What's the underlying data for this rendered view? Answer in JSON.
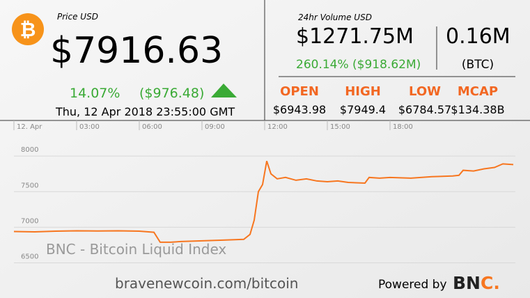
{
  "header": {
    "price_label": "Price USD",
    "price": "$7916.63",
    "change_pct": "14.07%",
    "change_abs": "($976.48)",
    "timestamp": "Thu, 12 Apr 2018 23:55:00 GMT"
  },
  "volume": {
    "label": "24hr Volume USD",
    "usd": "$1271.75M",
    "btc": "0.16M",
    "btc_unit": "(BTC)",
    "change": "260.14% ($918.62M)"
  },
  "stats": [
    {
      "label": "OPEN",
      "value": "$6943.98"
    },
    {
      "label": "HIGH",
      "value": "$7949.4"
    },
    {
      "label": "LOW",
      "value": "$6784.57"
    },
    {
      "label": "MCAP",
      "value": "$134.38B"
    }
  ],
  "chart_data": {
    "type": "line",
    "x": [
      0,
      1,
      2,
      3,
      4,
      5,
      6,
      6.7,
      7,
      7.5,
      8,
      9,
      10,
      11,
      11.3,
      11.5,
      11.7,
      11.9,
      12.1,
      12.3,
      12.6,
      13,
      13.5,
      14,
      14.5,
      15,
      15.5,
      16,
      16.8,
      17,
      17.5,
      18,
      19,
      20,
      21,
      21.3,
      21.5,
      22,
      22.5,
      23,
      23.4,
      23.9
    ],
    "series": [
      {
        "name": "BNC - Bitcoin Liquid Index",
        "color": "#f7761f",
        "values": [
          6940,
          6935,
          6945,
          6950,
          6948,
          6950,
          6945,
          6930,
          6790,
          6790,
          6800,
          6810,
          6820,
          6830,
          6900,
          7100,
          7500,
          7600,
          7930,
          7750,
          7680,
          7700,
          7660,
          7680,
          7650,
          7640,
          7650,
          7630,
          7620,
          7700,
          7690,
          7700,
          7690,
          7710,
          7720,
          7730,
          7800,
          7790,
          7820,
          7840,
          7890,
          7880
        ]
      }
    ],
    "xlim": [
      0,
      24
    ],
    "xticks": [
      {
        "value": 0,
        "label": "12. Apr"
      },
      {
        "value": 3,
        "label": "03:00"
      },
      {
        "value": 6,
        "label": "06:00"
      },
      {
        "value": 9,
        "label": "09:00"
      },
      {
        "value": 12,
        "label": "12:00"
      },
      {
        "value": 15,
        "label": "15:00"
      },
      {
        "value": 18,
        "label": "18:00"
      }
    ],
    "ylim": [
      6300,
      8500
    ],
    "yticks": [
      6500,
      7000,
      7500,
      8000
    ],
    "grid": true
  },
  "footer": {
    "url": "bravenewcoin.com/bitcoin",
    "powered_by": "Powered by",
    "logo_main": "BN",
    "logo_accent": "C."
  }
}
